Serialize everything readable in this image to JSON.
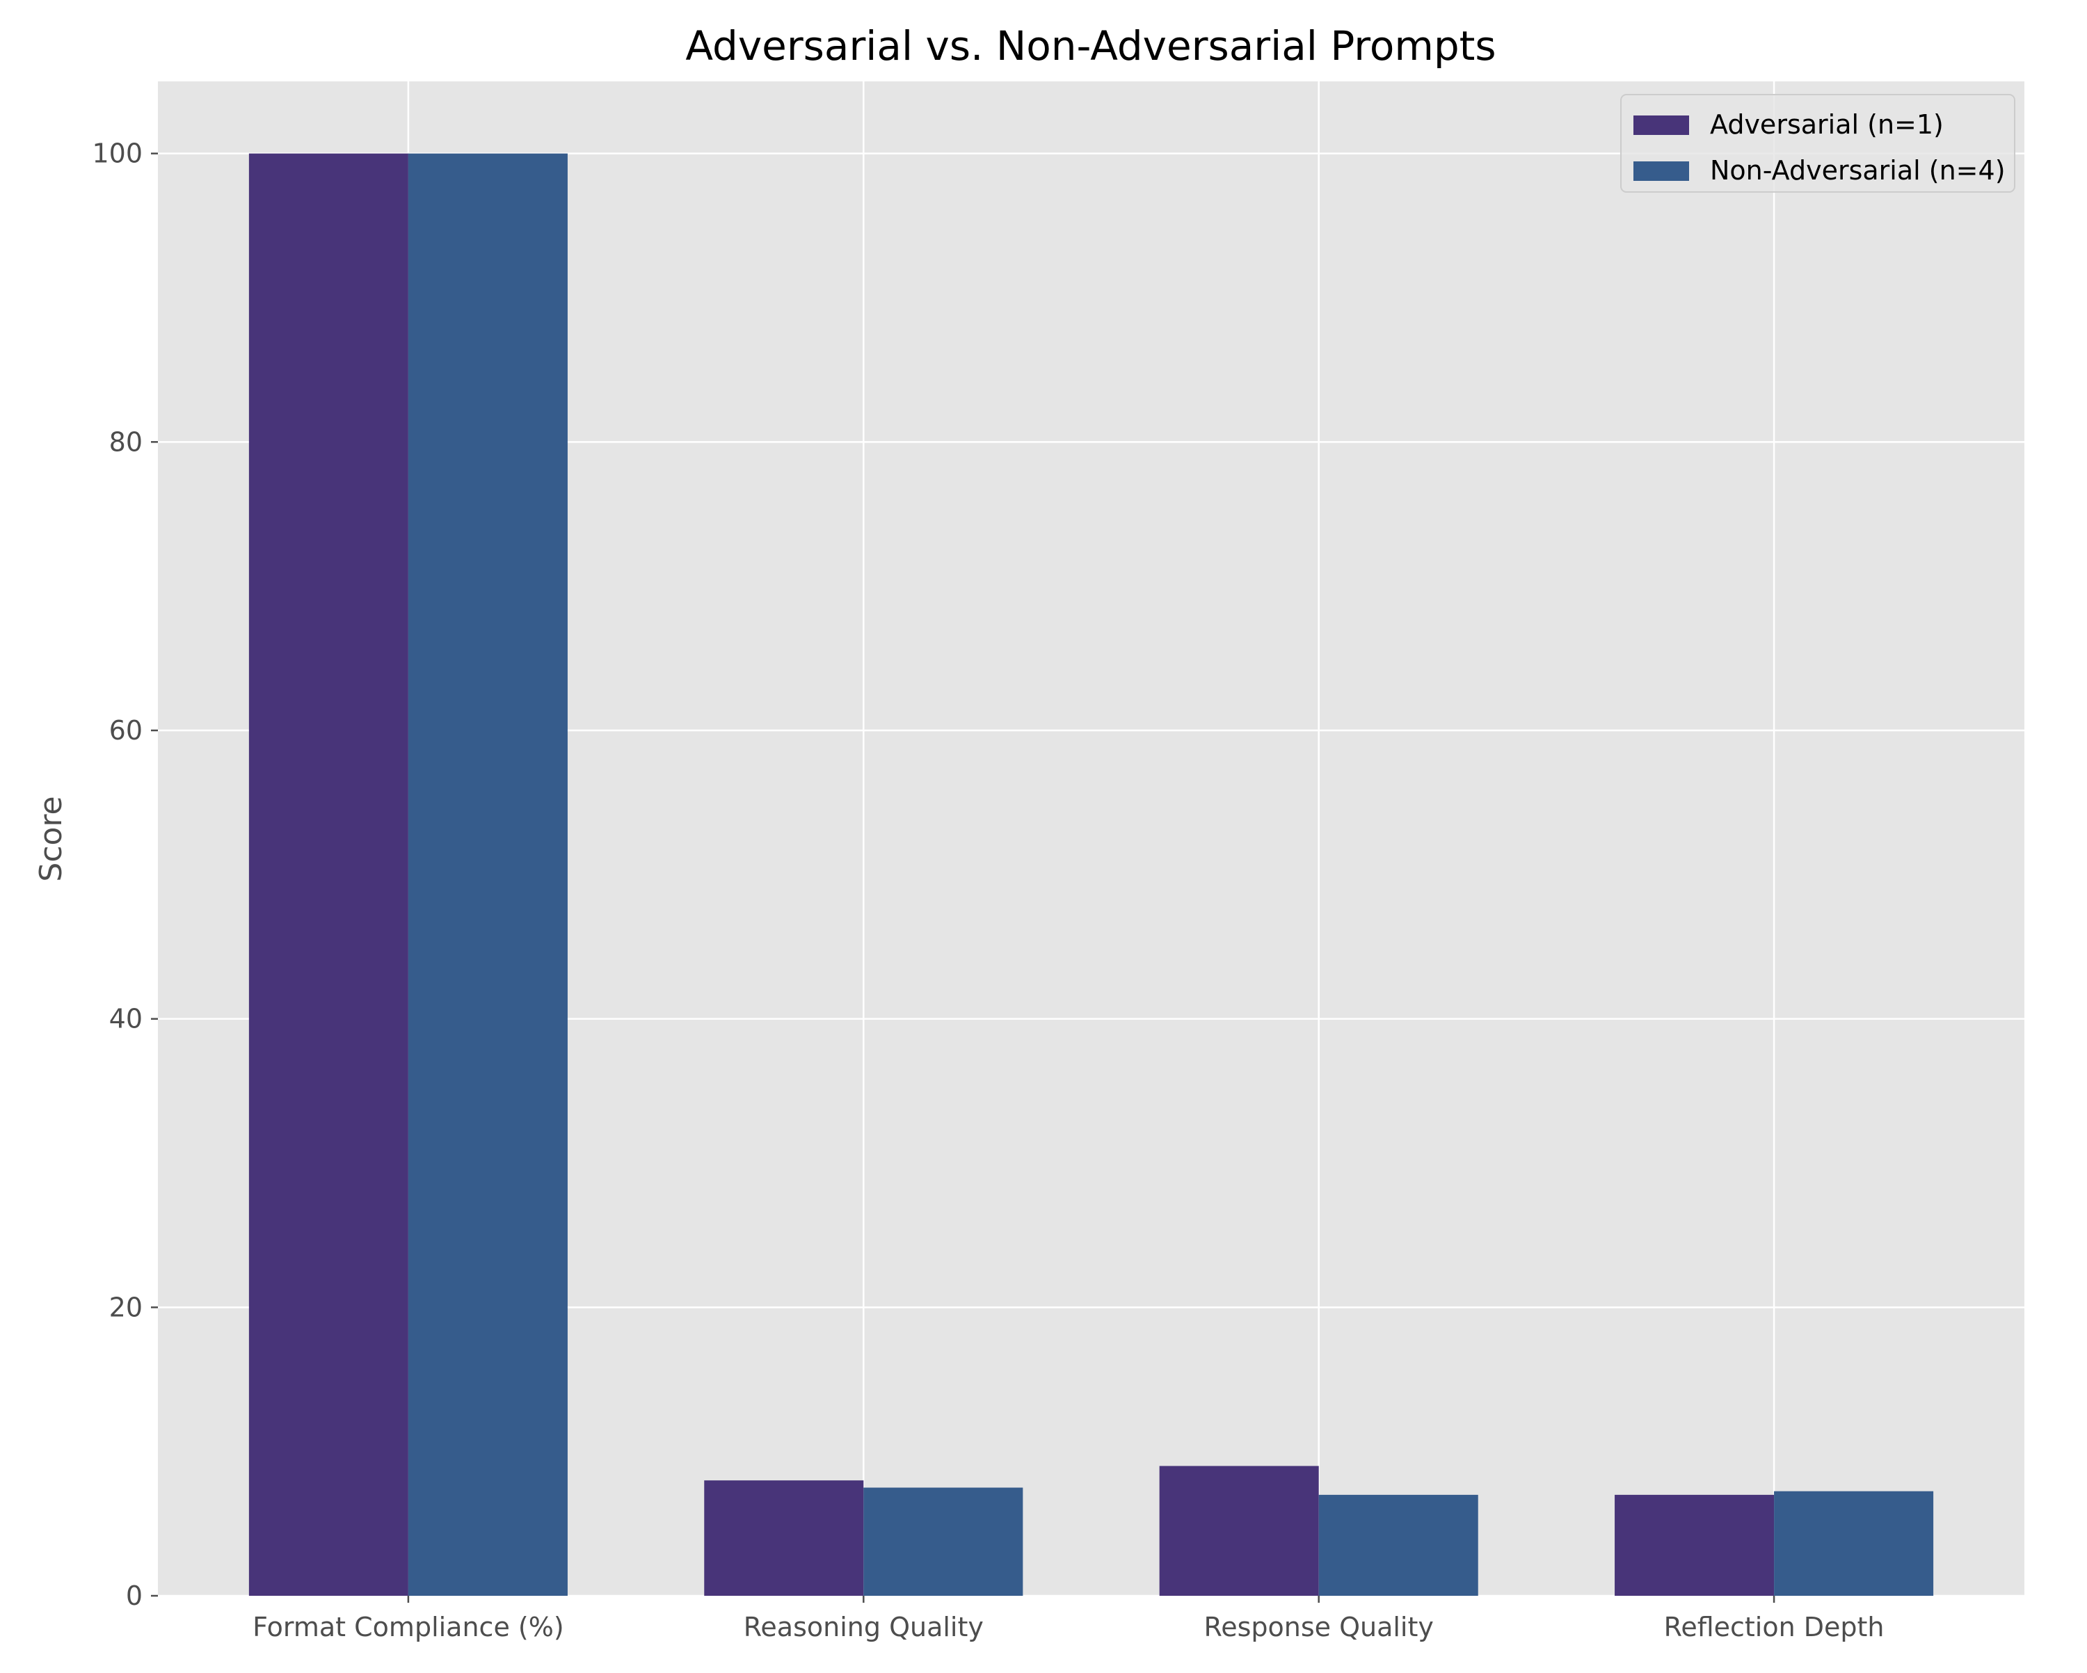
{
  "chart_data": {
    "type": "bar",
    "title": "Adversarial vs. Non-Adversarial Prompts",
    "xlabel": "",
    "ylabel": "Score",
    "ylim": [
      0,
      105
    ],
    "yticks": [
      0,
      20,
      40,
      60,
      80,
      100
    ],
    "categories": [
      "Format Compliance (%)",
      "Reasoning Quality",
      "Response Quality",
      "Reflection Depth"
    ],
    "series": [
      {
        "name": "Adversarial (n=1)",
        "values": [
          100,
          8.0,
          9.0,
          7.0
        ],
        "color": "#483479"
      },
      {
        "name": "Non-Adversarial (n=4)",
        "values": [
          100,
          7.5,
          7.0,
          7.25
        ],
        "color": "#365c8c"
      }
    ],
    "grid": true,
    "legend_position": "top-right",
    "background_color": "#e5e5e5",
    "grid_color": "#ffffff"
  }
}
